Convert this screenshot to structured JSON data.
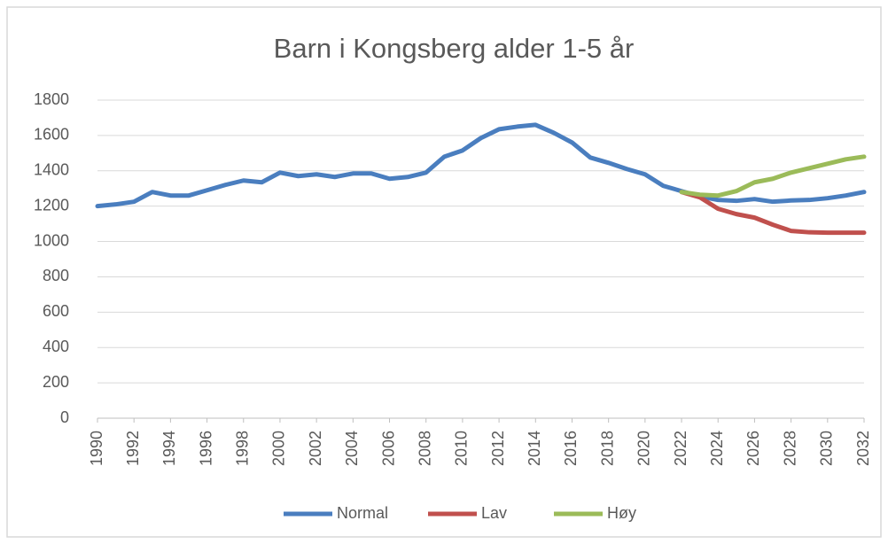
{
  "chart_data": {
    "type": "line",
    "title": "Barn i Kongsberg alder 1-5 år",
    "x": [
      1990,
      1991,
      1992,
      1993,
      1994,
      1995,
      1996,
      1997,
      1998,
      1999,
      2000,
      2001,
      2002,
      2003,
      2004,
      2005,
      2006,
      2007,
      2008,
      2009,
      2010,
      2011,
      2012,
      2013,
      2014,
      2015,
      2016,
      2017,
      2018,
      2019,
      2020,
      2021,
      2022,
      2023,
      2024,
      2025,
      2026,
      2027,
      2028,
      2029,
      2030,
      2031,
      2032
    ],
    "series": [
      {
        "name": "Normal",
        "color": "#4a7ebf",
        "values": [
          1200,
          1210,
          1225,
          1280,
          1260,
          1260,
          1290,
          1320,
          1345,
          1335,
          1390,
          1370,
          1380,
          1365,
          1385,
          1385,
          1355,
          1365,
          1390,
          1480,
          1515,
          1585,
          1635,
          1650,
          1660,
          1615,
          1560,
          1475,
          1445,
          1410,
          1380,
          1315,
          1285,
          1255,
          1235,
          1230,
          1240,
          1225,
          1232,
          1235,
          1245,
          1260,
          1280
        ]
      },
      {
        "name": "Lav",
        "color": "#c0504d",
        "values": [
          null,
          null,
          null,
          null,
          null,
          null,
          null,
          null,
          null,
          null,
          null,
          null,
          null,
          null,
          null,
          null,
          null,
          null,
          null,
          null,
          null,
          null,
          null,
          null,
          null,
          null,
          null,
          null,
          null,
          null,
          null,
          null,
          1280,
          1250,
          1185,
          1155,
          1135,
          1095,
          1060,
          1052,
          1050,
          1050,
          1050
        ]
      },
      {
        "name": "Høy",
        "color": "#9bbb59",
        "values": [
          null,
          null,
          null,
          null,
          null,
          null,
          null,
          null,
          null,
          null,
          null,
          null,
          null,
          null,
          null,
          null,
          null,
          null,
          null,
          null,
          null,
          null,
          null,
          null,
          null,
          null,
          null,
          null,
          null,
          null,
          null,
          null,
          1280,
          1265,
          1260,
          1285,
          1335,
          1355,
          1390,
          1415,
          1440,
          1465,
          1480
        ]
      }
    ],
    "xlim": [
      1990,
      2032
    ],
    "xticks": [
      1990,
      1992,
      1994,
      1996,
      1998,
      2000,
      2002,
      2004,
      2006,
      2008,
      2010,
      2012,
      2014,
      2016,
      2018,
      2020,
      2022,
      2024,
      2026,
      2028,
      2030,
      2032
    ],
    "ylim": [
      0,
      1800
    ],
    "yticks": [
      0,
      200,
      400,
      600,
      800,
      1000,
      1200,
      1400,
      1600,
      1800
    ],
    "grid": true,
    "legend": "bottom"
  }
}
